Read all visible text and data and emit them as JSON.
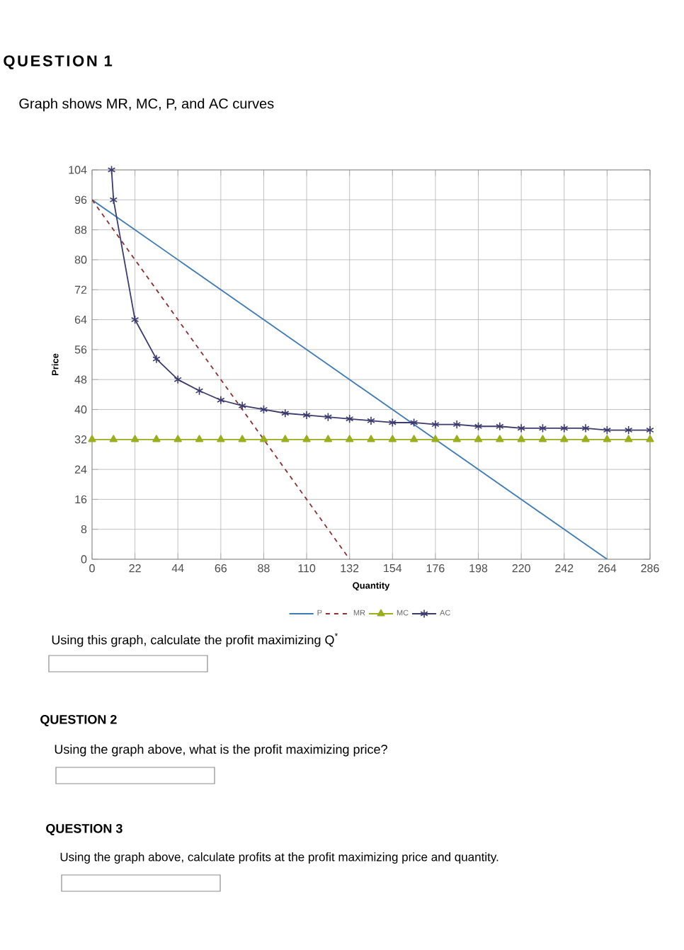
{
  "chart_data": {
    "type": "line",
    "title": "QUESTION 1",
    "subtitle": "Graph shows MR, MC, P, and AC curves",
    "xlabel": "Quantity",
    "ylabel": "Price",
    "xlim": [
      0,
      286
    ],
    "xticks": [
      0,
      22,
      44,
      66,
      88,
      110,
      132,
      154,
      176,
      198,
      220,
      242,
      264,
      286
    ],
    "ylim": [
      0,
      104
    ],
    "yticks": [
      0,
      8,
      16,
      24,
      32,
      40,
      48,
      56,
      64,
      72,
      80,
      88,
      96,
      104
    ],
    "grid": true,
    "legend": "bottom",
    "series": [
      {
        "name": "P",
        "color": "#3f7ab3",
        "line_style": "solid",
        "marker": "none",
        "x": [
          0,
          264
        ],
        "values": [
          96,
          0
        ]
      },
      {
        "name": "MR",
        "color": "#8b3030",
        "line_style": "dashed",
        "marker": "none",
        "x": [
          0,
          22,
          44,
          66,
          88,
          110,
          132
        ],
        "values": [
          96,
          80,
          64,
          48,
          32,
          16,
          0
        ]
      },
      {
        "name": "MC",
        "color": "#9aae1f",
        "line_style": "solid",
        "marker": "triangle",
        "x": [
          0,
          11,
          22,
          33,
          44,
          55,
          66,
          77,
          88,
          99,
          110,
          121,
          132,
          143,
          154,
          165,
          176,
          187,
          198,
          209,
          220,
          231,
          242,
          253,
          264,
          275,
          286
        ],
        "values": [
          32,
          32,
          32,
          32,
          32,
          32,
          32,
          32,
          32,
          32,
          32,
          32,
          32,
          32,
          32,
          32,
          32,
          32,
          32,
          32,
          32,
          32,
          32,
          32,
          32,
          32,
          32
        ]
      },
      {
        "name": "AC",
        "color": "#3b3b6e",
        "line_style": "solid",
        "marker": "cross",
        "x": [
          10,
          11,
          22,
          33,
          44,
          55,
          66,
          77,
          88,
          99,
          110,
          121,
          132,
          143,
          154,
          165,
          176,
          187,
          198,
          209,
          220,
          231,
          242,
          253,
          264,
          275,
          286
        ],
        "values": [
          104,
          96,
          64,
          53.5,
          48,
          45,
          42.5,
          41,
          40,
          39,
          38.5,
          38,
          37.5,
          37,
          36.5,
          36.5,
          36,
          36,
          35.5,
          35.5,
          35,
          35,
          35,
          35,
          34.5,
          34.5,
          34.5
        ]
      }
    ],
    "annotations": [
      "Using this graph, calculate the profit maximizing Q$^{*}$",
      "QUESTION 2",
      "Using the graph above, what is the profit maximizing price?",
      "QUESTION 3",
      "Using the graph above, calculate profits at the profit maximizing price and quantity."
    ]
  }
}
